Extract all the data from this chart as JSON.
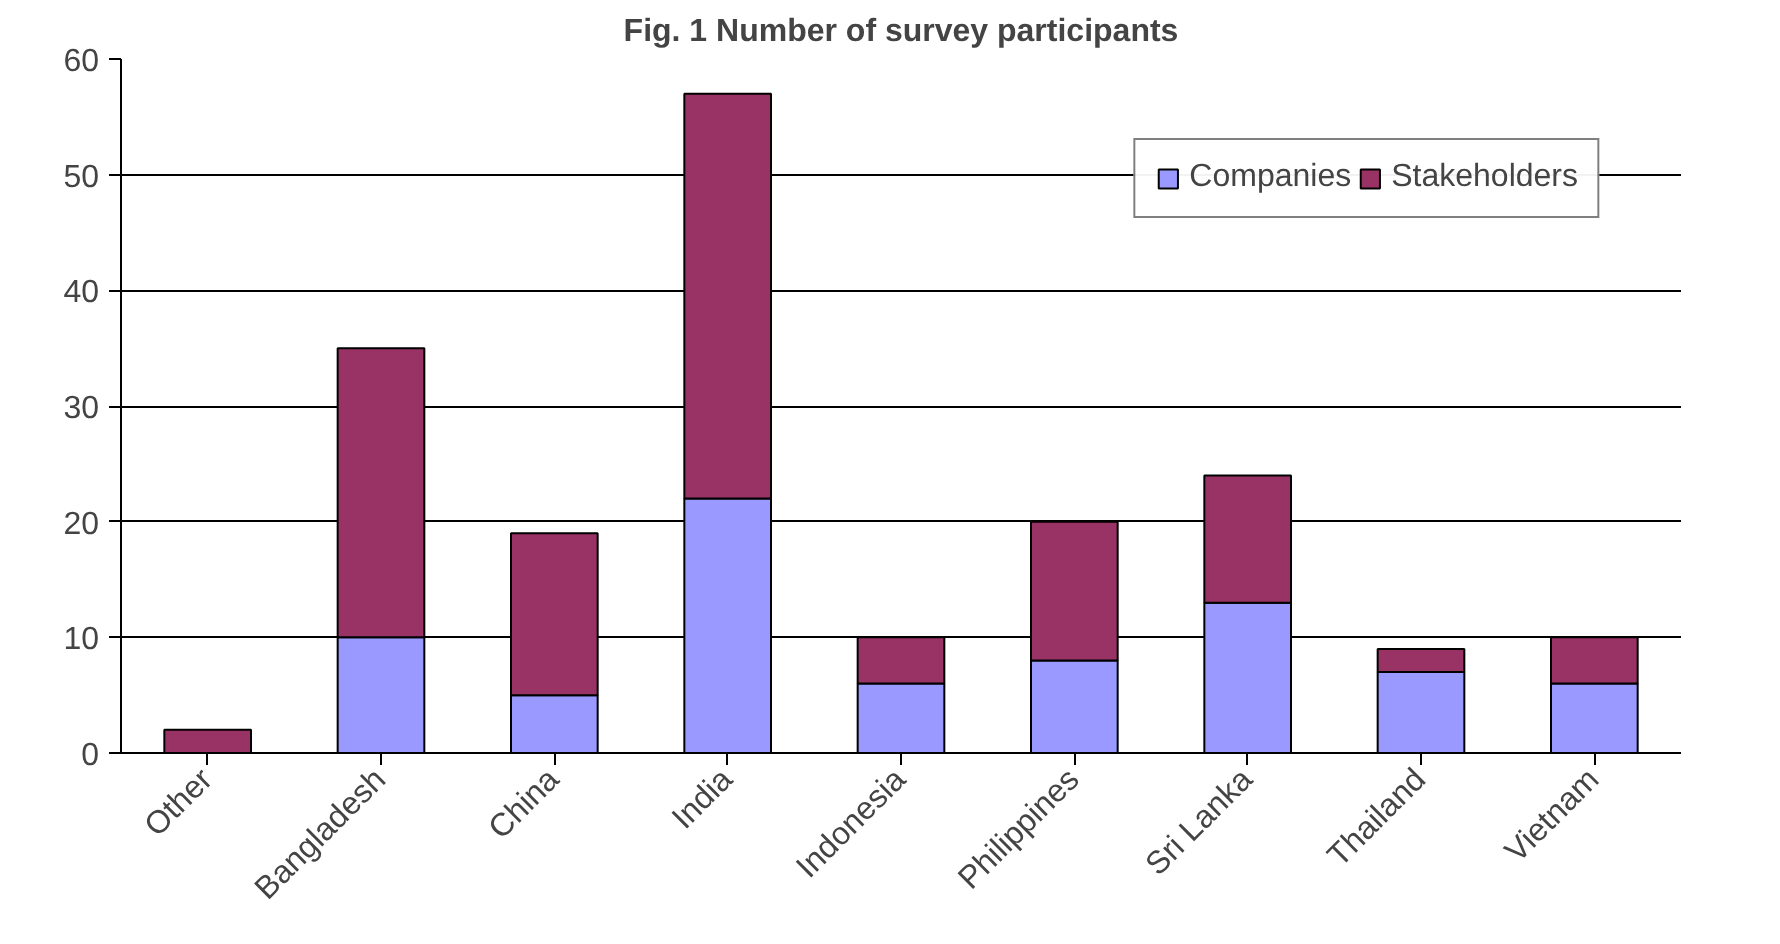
{
  "chart_data": {
    "type": "bar",
    "title": "Fig. 1 Number of survey participants",
    "stacked": true,
    "categories": [
      "Other",
      "Bangladesh",
      "China",
      "India",
      "Indonesia",
      "Philippines",
      "Sri Lanka",
      "Thailand",
      "Vietnam"
    ],
    "series": [
      {
        "name": "Companies",
        "color": "#9999ff",
        "values": [
          0,
          10,
          5,
          22,
          6,
          8,
          13,
          7,
          6
        ]
      },
      {
        "name": "Stakeholders",
        "color": "#993366",
        "values": [
          2,
          25,
          14,
          35,
          4,
          12,
          11,
          2,
          4
        ]
      }
    ],
    "ylim": [
      0,
      60
    ],
    "yticks": [
      0,
      10,
      20,
      30,
      40,
      50,
      60
    ],
    "grid": "y",
    "legend": "top right"
  }
}
